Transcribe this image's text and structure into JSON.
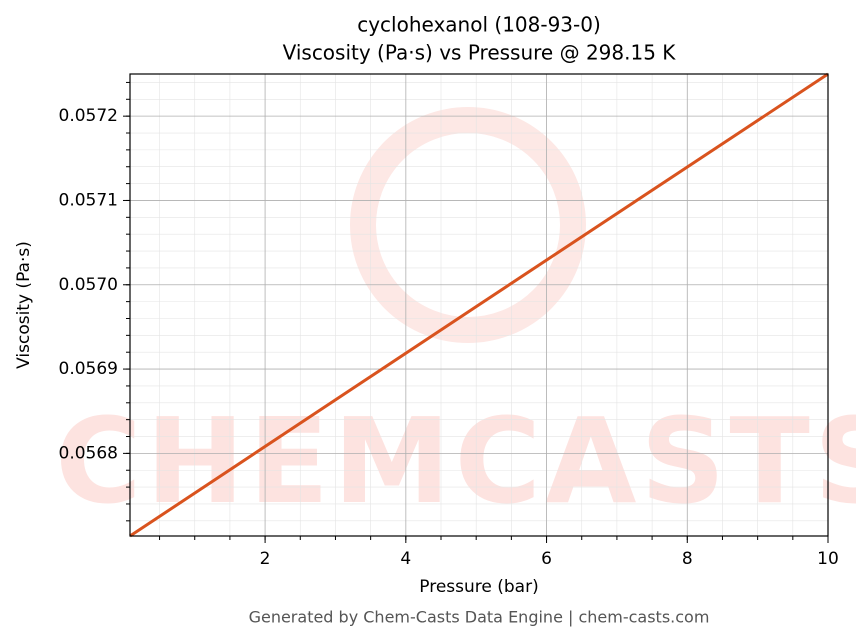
{
  "chart_data": {
    "type": "line",
    "title": "cyclohexanol (108-93-0)",
    "subtitle": "Viscosity (Pa·s) vs Pressure @ 298.15 K",
    "x_label": "Pressure (bar)",
    "y_label": "Viscosity (Pa·s)",
    "footer": "Generated by Chem-Casts Data Engine | chem-casts.com",
    "watermark": "CHEMCASTS",
    "x": [
      0.08,
      5,
      10
    ],
    "series": [
      {
        "name": "Viscosity",
        "color": "#d9531e",
        "values": [
          0.056702,
          0.0569741,
          0.05725
        ]
      }
    ],
    "xlim": [
      0.08,
      10
    ],
    "ylim": [
      0.056702,
      0.05725
    ],
    "xticks": [
      2,
      4,
      6,
      8,
      10
    ],
    "yticks": [
      0.0568,
      0.0569,
      {
        "value": 0.057,
        "label": "0.0570"
      },
      0.0571,
      0.0572
    ],
    "grid": true,
    "minor_grid": true
  }
}
